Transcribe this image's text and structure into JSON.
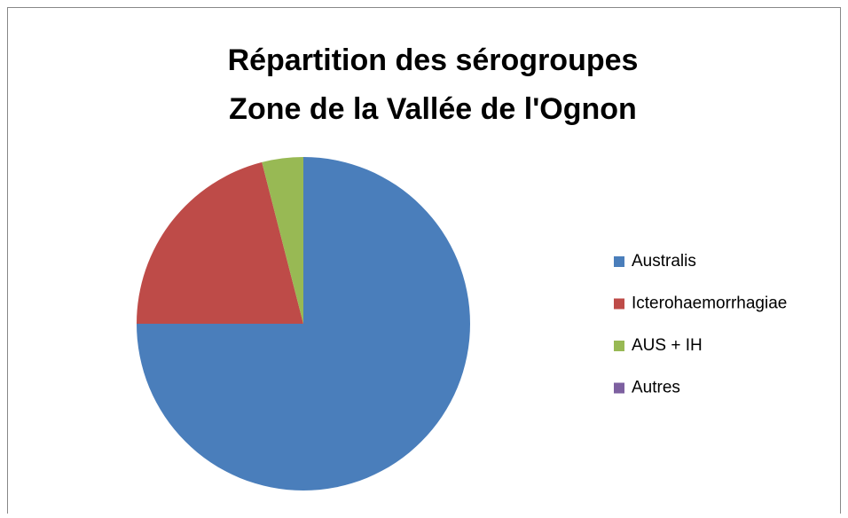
{
  "chart_data": {
    "type": "pie",
    "title": [
      "Répartition des sérogroupes",
      "Zone de la Vallée de l'Ognon"
    ],
    "categories": [
      "Australis",
      "Icterohaemorrhagiae",
      "AUS + IH",
      "Autres"
    ],
    "values": [
      75,
      21,
      4,
      0
    ],
    "colors": [
      "#4a7ebb",
      "#be4b48",
      "#98b954",
      "#7d60a0"
    ],
    "legend": "right"
  }
}
